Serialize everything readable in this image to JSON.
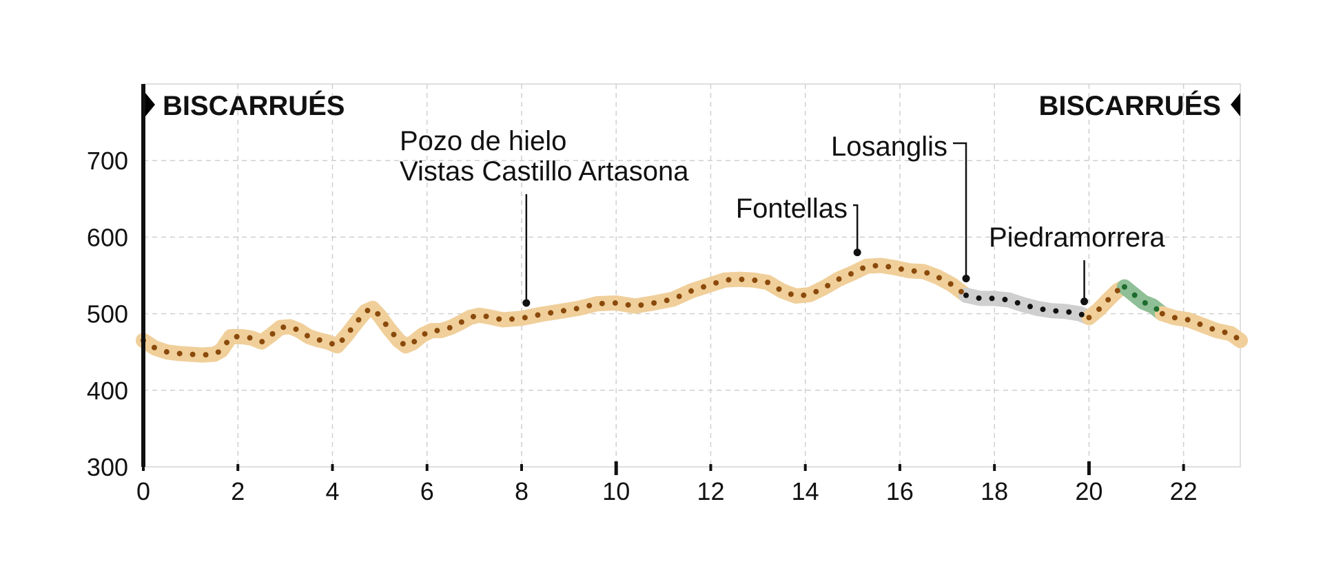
{
  "chart_data": {
    "type": "line",
    "title": "",
    "xlabel": "",
    "ylabel": "",
    "xlim": [
      0,
      23.2
    ],
    "ylim": [
      300,
      800
    ],
    "x_ticks": [
      0,
      2,
      4,
      6,
      8,
      10,
      12,
      14,
      16,
      18,
      20,
      22
    ],
    "y_ticks": [
      300,
      400,
      500,
      600,
      700
    ],
    "grid": true,
    "colors": {
      "halo_main": "#f0cf9a",
      "dots_main": "#8a4a0c",
      "halo_grey": "#cfcfcf",
      "dots_grey": "#111111",
      "halo_green": "#8fbf96",
      "dots_green": "#1e6b2e",
      "axis": "#111111"
    },
    "endpoints": {
      "start_label": "BISCARRUÉS",
      "end_label": "BISCARRUÉS"
    },
    "annotations": [
      {
        "lines": [
          "Pozo de hielo",
          "Vistas Castillo Artasona"
        ],
        "x": 8.1,
        "y": 514
      },
      {
        "lines": [
          "Fontellas"
        ],
        "x": 15.1,
        "y": 580
      },
      {
        "lines": [
          "Losanglis"
        ],
        "x": 17.4,
        "y": 546
      },
      {
        "lines": [
          "Piedramorrera"
        ],
        "x": 19.9,
        "y": 516
      }
    ],
    "series": [
      {
        "segment": "main",
        "x": [
          0,
          0.25,
          0.5,
          0.75,
          1.0,
          1.25,
          1.5,
          1.65,
          1.85,
          2.1,
          2.3,
          2.5,
          2.7,
          2.9,
          3.1,
          3.3,
          3.5,
          3.7,
          3.9,
          4.1,
          4.3,
          4.5,
          4.7,
          4.85,
          5.0,
          5.2,
          5.4,
          5.55,
          5.7,
          5.9,
          6.1,
          6.3,
          6.5,
          6.7,
          6.9,
          7.1,
          7.3,
          7.6,
          8.0,
          8.4,
          8.8,
          9.2,
          9.6,
          10.0,
          10.4,
          10.8,
          11.2,
          11.6,
          12.0,
          12.3,
          12.6,
          12.9,
          13.2,
          13.5,
          13.8,
          14.1,
          14.4,
          14.7,
          15.0,
          15.3,
          15.6,
          15.9,
          16.2,
          16.5,
          16.8,
          17.1,
          17.4
        ],
        "y": [
          465,
          455,
          450,
          448,
          447,
          446,
          447,
          452,
          470,
          470,
          468,
          463,
          472,
          482,
          483,
          478,
          470,
          466,
          463,
          458,
          472,
          488,
          503,
          507,
          497,
          480,
          465,
          458,
          462,
          472,
          478,
          478,
          482,
          488,
          495,
          498,
          496,
          492,
          494,
          499,
          503,
          507,
          513,
          514,
          510,
          514,
          519,
          530,
          538,
          544,
          545,
          544,
          541,
          530,
          523,
          525,
          534,
          545,
          553,
          562,
          563,
          560,
          556,
          555,
          548,
          538,
          524
        ]
      },
      {
        "segment": "grey",
        "x": [
          17.4,
          17.7,
          18.0,
          18.3,
          18.6,
          18.9,
          19.2,
          19.5,
          19.8,
          20.0
        ],
        "y": [
          524,
          520,
          520,
          518,
          512,
          507,
          504,
          503,
          500,
          495
        ]
      },
      {
        "segment": "main",
        "x": [
          20.0,
          20.2,
          20.4,
          20.6,
          20.75
        ],
        "y": [
          495,
          505,
          518,
          530,
          535
        ]
      },
      {
        "segment": "green",
        "x": [
          20.75,
          20.95,
          21.15,
          21.35,
          21.55
        ],
        "y": [
          535,
          525,
          515,
          510,
          500
        ]
      },
      {
        "segment": "main",
        "x": [
          21.55,
          21.8,
          22.1,
          22.4,
          22.7,
          23.0,
          23.2
        ],
        "y": [
          500,
          495,
          492,
          485,
          478,
          474,
          465
        ]
      }
    ]
  }
}
